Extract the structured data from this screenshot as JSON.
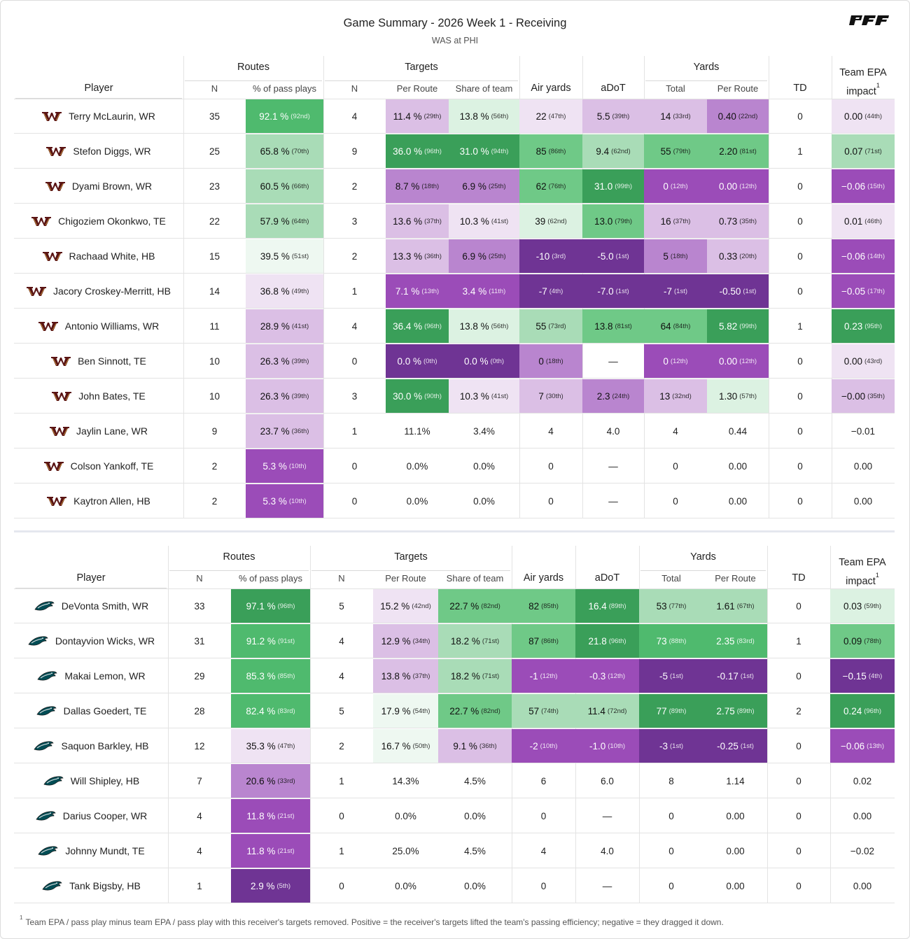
{
  "header": {
    "title": "Game Summary - 2026 Week 1 - Receiving",
    "subtitle": "WAS at PHI",
    "logo_text": "PFF"
  },
  "columns": {
    "player": "Player",
    "routes": "Routes",
    "routes_n": "N",
    "routes_pct": "% of pass plays",
    "targets": "Targets",
    "targets_n": "N",
    "per_route": "Per Route",
    "share": "Share of team",
    "air_yards": "Air yards",
    "adot": "aDoT",
    "yards": "Yards",
    "yards_total": "Total",
    "yards_per_route": "Per Route",
    "td": "TD",
    "epa_line1": "Team EPA",
    "epa_line2": "impact",
    "epa_sup": "1"
  },
  "footnote": {
    "marker": "1",
    "text": "Team EPA / pass play minus team EPA / pass play with this receiver's targets removed. Positive = the receiver's targets lifted the team's passing efficiency; negative = they dragged it down."
  },
  "colors": {
    "purple_dark": "#6f3494",
    "purple": "#9b4cb8",
    "purple_mid": "#b985cf",
    "purple_light": "#dbbfe5",
    "purple_pale": "#efe3f3",
    "green_pale": "#dcf2e2",
    "green_light": "#a9dcb7",
    "green_mid": "#6fc987",
    "green": "#4fba6e",
    "green_dark": "#3a9f59"
  },
  "tables": [
    {
      "team": "WAS",
      "logo": "commanders-w-icon",
      "rows": [
        {
          "player": "Terry McLaurin, WR",
          "routes": "35",
          "routes_pct": [
            "92.1 %",
            "92nd",
            "green"
          ],
          "targets": "4",
          "per_route": [
            "11.4 %",
            "29th",
            "plight"
          ],
          "share": [
            "13.8 %",
            "56th",
            "gpale"
          ],
          "air": [
            "22",
            "47th",
            "ppale"
          ],
          "adot": [
            "5.5",
            "39th",
            "plight"
          ],
          "ytot": [
            "14",
            "33rd",
            "plight"
          ],
          "ypr": [
            "0.40",
            "22nd",
            "pmid"
          ],
          "td": "0",
          "epa": [
            "0.00",
            "44th",
            "ppale"
          ]
        },
        {
          "player": "Stefon Diggs, WR",
          "routes": "25",
          "routes_pct": [
            "65.8 %",
            "70th",
            "glight"
          ],
          "targets": "9",
          "per_route": [
            "36.0 %",
            "96th",
            "gdark"
          ],
          "share": [
            "31.0 %",
            "94th",
            "gdark"
          ],
          "air": [
            "85",
            "86th",
            "gmid"
          ],
          "adot": [
            "9.4",
            "62nd",
            "glight"
          ],
          "ytot": [
            "55",
            "79th",
            "gmid"
          ],
          "ypr": [
            "2.20",
            "81st",
            "gmid"
          ],
          "td": "1",
          "epa": [
            "0.07",
            "71st",
            "glight"
          ]
        },
        {
          "player": "Dyami Brown, WR",
          "routes": "23",
          "routes_pct": [
            "60.5 %",
            "66th",
            "glight"
          ],
          "targets": "2",
          "per_route": [
            "8.7 %",
            "18th",
            "pmid"
          ],
          "share": [
            "6.9 %",
            "25th",
            "pmid"
          ],
          "air": [
            "62",
            "76th",
            "gmid"
          ],
          "adot": [
            "31.0",
            "99th",
            "gdark"
          ],
          "ytot": [
            "0",
            "12th",
            "purple"
          ],
          "ypr": [
            "0.00",
            "12th",
            "purple"
          ],
          "td": "0",
          "epa": [
            "−0.06",
            "15th",
            "purple"
          ]
        },
        {
          "player": "Chigoziem Okonkwo, TE",
          "routes": "22",
          "routes_pct": [
            "57.9 %",
            "64th",
            "glight"
          ],
          "targets": "3",
          "per_route": [
            "13.6 %",
            "37th",
            "plight"
          ],
          "share": [
            "10.3 %",
            "41st",
            "ppale"
          ],
          "air": [
            "39",
            "62nd",
            "gpale"
          ],
          "adot": [
            "13.0",
            "79th",
            "gmid"
          ],
          "ytot": [
            "16",
            "37th",
            "plight"
          ],
          "ypr": [
            "0.73",
            "35th",
            "plight"
          ],
          "td": "0",
          "epa": [
            "0.01",
            "46th",
            "ppale"
          ]
        },
        {
          "player": "Rachaad White, HB",
          "routes": "15",
          "routes_pct": [
            "39.5 %",
            "51st",
            "gvpale"
          ],
          "targets": "2",
          "per_route": [
            "13.3 %",
            "36th",
            "plight"
          ],
          "share": [
            "6.9 %",
            "25th",
            "pmid"
          ],
          "air": [
            "-10",
            "3rd",
            "pdark"
          ],
          "adot": [
            "-5.0",
            "1st",
            "pdark"
          ],
          "ytot": [
            "5",
            "18th",
            "pmid"
          ],
          "ypr": [
            "0.33",
            "20th",
            "plight"
          ],
          "td": "0",
          "epa": [
            "−0.06",
            "14th",
            "purple"
          ]
        },
        {
          "player": "Jacory Croskey-Merritt, HB",
          "routes": "14",
          "routes_pct": [
            "36.8 %",
            "49th",
            "ppale"
          ],
          "targets": "1",
          "per_route": [
            "7.1 %",
            "13th",
            "purple"
          ],
          "share": [
            "3.4 %",
            "11th",
            "purple"
          ],
          "air": [
            "-7",
            "4th",
            "pdark"
          ],
          "adot": [
            "-7.0",
            "1st",
            "pdark"
          ],
          "ytot": [
            "-7",
            "1st",
            "pdark"
          ],
          "ypr": [
            "-0.50",
            "1st",
            "pdark"
          ],
          "td": "0",
          "epa": [
            "−0.05",
            "17th",
            "purple"
          ]
        },
        {
          "player": "Antonio Williams, WR",
          "routes": "11",
          "routes_pct": [
            "28.9 %",
            "41st",
            "plight"
          ],
          "targets": "4",
          "per_route": [
            "36.4 %",
            "96th",
            "gdark"
          ],
          "share": [
            "13.8 %",
            "56th",
            "gpale"
          ],
          "air": [
            "55",
            "73rd",
            "glight"
          ],
          "adot": [
            "13.8",
            "81st",
            "gmid"
          ],
          "ytot": [
            "64",
            "84th",
            "gmid"
          ],
          "ypr": [
            "5.82",
            "99th",
            "gdark"
          ],
          "td": "1",
          "epa": [
            "0.23",
            "95th",
            "gdark"
          ]
        },
        {
          "player": "Ben Sinnott, TE",
          "routes": "10",
          "routes_pct": [
            "26.3 %",
            "39th",
            "plight"
          ],
          "targets": "0",
          "per_route": [
            "0.0 %",
            "0th",
            "pdark"
          ],
          "share": [
            "0.0 %",
            "0th",
            "pdark"
          ],
          "air": [
            "0",
            "18th",
            "pmid"
          ],
          "adot": [
            "—",
            "",
            ""
          ],
          "ytot": [
            "0",
            "12th",
            "purple"
          ],
          "ypr": [
            "0.00",
            "12th",
            "purple"
          ],
          "td": "0",
          "epa": [
            "0.00",
            "43rd",
            "ppale"
          ]
        },
        {
          "player": "John Bates, TE",
          "routes": "10",
          "routes_pct": [
            "26.3 %",
            "39th",
            "plight"
          ],
          "targets": "3",
          "per_route": [
            "30.0 %",
            "90th",
            "gdark"
          ],
          "share": [
            "10.3 %",
            "41st",
            "ppale"
          ],
          "air": [
            "7",
            "30th",
            "plight"
          ],
          "adot": [
            "2.3",
            "24th",
            "pmid"
          ],
          "ytot": [
            "13",
            "32nd",
            "plight"
          ],
          "ypr": [
            "1.30",
            "57th",
            "gpale"
          ],
          "td": "0",
          "epa": [
            "−0.00",
            "35th",
            "plight"
          ]
        },
        {
          "player": "Jaylin Lane, WR",
          "routes": "9",
          "routes_pct": [
            "23.7 %",
            "36th",
            "plight"
          ],
          "targets": "1",
          "per_route": [
            "11.1%",
            "",
            ""
          ],
          "share": [
            "3.4%",
            "",
            ""
          ],
          "air": [
            "4",
            "",
            ""
          ],
          "adot": [
            "4.0",
            "",
            ""
          ],
          "ytot": [
            "4",
            "",
            ""
          ],
          "ypr": [
            "0.44",
            "",
            ""
          ],
          "td": "0",
          "epa": [
            "−0.01",
            "",
            ""
          ]
        },
        {
          "player": "Colson Yankoff, TE",
          "routes": "2",
          "routes_pct": [
            "5.3 %",
            "10th",
            "purple"
          ],
          "targets": "0",
          "per_route": [
            "0.0%",
            "",
            ""
          ],
          "share": [
            "0.0%",
            "",
            ""
          ],
          "air": [
            "0",
            "",
            ""
          ],
          "adot": [
            "—",
            "",
            ""
          ],
          "ytot": [
            "0",
            "",
            ""
          ],
          "ypr": [
            "0.00",
            "",
            ""
          ],
          "td": "0",
          "epa": [
            "0.00",
            "",
            ""
          ]
        },
        {
          "player": "Kaytron Allen, HB",
          "routes": "2",
          "routes_pct": [
            "5.3 %",
            "10th",
            "purple"
          ],
          "targets": "0",
          "per_route": [
            "0.0%",
            "",
            ""
          ],
          "share": [
            "0.0%",
            "",
            ""
          ],
          "air": [
            "0",
            "",
            ""
          ],
          "adot": [
            "—",
            "",
            ""
          ],
          "ytot": [
            "0",
            "",
            ""
          ],
          "ypr": [
            "0.00",
            "",
            ""
          ],
          "td": "0",
          "epa": [
            "0.00",
            "",
            ""
          ]
        }
      ]
    },
    {
      "team": "PHI",
      "logo": "eagles-head-icon",
      "rows": [
        {
          "player": "DeVonta Smith, WR",
          "routes": "33",
          "routes_pct": [
            "97.1 %",
            "96th",
            "gdark"
          ],
          "targets": "5",
          "per_route": [
            "15.2 %",
            "42nd",
            "ppale"
          ],
          "share": [
            "22.7 %",
            "82nd",
            "gmid"
          ],
          "air": [
            "82",
            "85th",
            "gmid"
          ],
          "adot": [
            "16.4",
            "89th",
            "gdark"
          ],
          "ytot": [
            "53",
            "77th",
            "glight"
          ],
          "ypr": [
            "1.61",
            "67th",
            "glight"
          ],
          "td": "0",
          "epa": [
            "0.03",
            "59th",
            "gpale"
          ]
        },
        {
          "player": "Dontayvion Wicks, WR",
          "routes": "31",
          "routes_pct": [
            "91.2 %",
            "91st",
            "green"
          ],
          "targets": "4",
          "per_route": [
            "12.9 %",
            "34th",
            "plight"
          ],
          "share": [
            "18.2 %",
            "71st",
            "glight"
          ],
          "air": [
            "87",
            "86th",
            "gmid"
          ],
          "adot": [
            "21.8",
            "96th",
            "gdark"
          ],
          "ytot": [
            "73",
            "88th",
            "green"
          ],
          "ypr": [
            "2.35",
            "83rd",
            "green"
          ],
          "td": "1",
          "epa": [
            "0.09",
            "78th",
            "gmid"
          ]
        },
        {
          "player": "Makai Lemon, WR",
          "routes": "29",
          "routes_pct": [
            "85.3 %",
            "85th",
            "green"
          ],
          "targets": "4",
          "per_route": [
            "13.8 %",
            "37th",
            "plight"
          ],
          "share": [
            "18.2 %",
            "71st",
            "glight"
          ],
          "air": [
            "-1",
            "12th",
            "purple"
          ],
          "adot": [
            "-0.3",
            "12th",
            "purple"
          ],
          "ytot": [
            "-5",
            "1st",
            "pdark"
          ],
          "ypr": [
            "-0.17",
            "1st",
            "pdark"
          ],
          "td": "0",
          "epa": [
            "−0.15",
            "4th",
            "pdark"
          ]
        },
        {
          "player": "Dallas Goedert, TE",
          "routes": "28",
          "routes_pct": [
            "82.4 %",
            "83rd",
            "green"
          ],
          "targets": "5",
          "per_route": [
            "17.9 %",
            "54th",
            "gvpale"
          ],
          "share": [
            "22.7 %",
            "82nd",
            "gmid"
          ],
          "air": [
            "57",
            "74th",
            "glight"
          ],
          "adot": [
            "11.4",
            "72nd",
            "glight"
          ],
          "ytot": [
            "77",
            "89th",
            "gdark"
          ],
          "ypr": [
            "2.75",
            "89th",
            "gdark"
          ],
          "td": "2",
          "epa": [
            "0.24",
            "96th",
            "gdark"
          ]
        },
        {
          "player": "Saquon Barkley, HB",
          "routes": "12",
          "routes_pct": [
            "35.3 %",
            "47th",
            "ppale"
          ],
          "targets": "2",
          "per_route": [
            "16.7 %",
            "50th",
            "gvpale"
          ],
          "share": [
            "9.1 %",
            "36th",
            "plight"
          ],
          "air": [
            "-2",
            "10th",
            "purple"
          ],
          "adot": [
            "-1.0",
            "10th",
            "purple"
          ],
          "ytot": [
            "-3",
            "1st",
            "pdark"
          ],
          "ypr": [
            "-0.25",
            "1st",
            "pdark"
          ],
          "td": "0",
          "epa": [
            "−0.06",
            "13th",
            "purple"
          ]
        },
        {
          "player": "Will Shipley, HB",
          "routes": "7",
          "routes_pct": [
            "20.6 %",
            "33rd",
            "pmid"
          ],
          "targets": "1",
          "per_route": [
            "14.3%",
            "",
            ""
          ],
          "share": [
            "4.5%",
            "",
            ""
          ],
          "air": [
            "6",
            "",
            ""
          ],
          "adot": [
            "6.0",
            "",
            ""
          ],
          "ytot": [
            "8",
            "",
            ""
          ],
          "ypr": [
            "1.14",
            "",
            ""
          ],
          "td": "0",
          "epa": [
            "0.02",
            "",
            ""
          ]
        },
        {
          "player": "Darius Cooper, WR",
          "routes": "4",
          "routes_pct": [
            "11.8 %",
            "21st",
            "purple"
          ],
          "targets": "0",
          "per_route": [
            "0.0%",
            "",
            ""
          ],
          "share": [
            "0.0%",
            "",
            ""
          ],
          "air": [
            "0",
            "",
            ""
          ],
          "adot": [
            "—",
            "",
            ""
          ],
          "ytot": [
            "0",
            "",
            ""
          ],
          "ypr": [
            "0.00",
            "",
            ""
          ],
          "td": "0",
          "epa": [
            "0.00",
            "",
            ""
          ]
        },
        {
          "player": "Johnny Mundt, TE",
          "routes": "4",
          "routes_pct": [
            "11.8 %",
            "21st",
            "purple"
          ],
          "targets": "1",
          "per_route": [
            "25.0%",
            "",
            ""
          ],
          "share": [
            "4.5%",
            "",
            ""
          ],
          "air": [
            "4",
            "",
            ""
          ],
          "adot": [
            "4.0",
            "",
            ""
          ],
          "ytot": [
            "0",
            "",
            ""
          ],
          "ypr": [
            "0.00",
            "",
            ""
          ],
          "td": "0",
          "epa": [
            "−0.02",
            "",
            ""
          ]
        },
        {
          "player": "Tank Bigsby, HB",
          "routes": "1",
          "routes_pct": [
            "2.9 %",
            "5th",
            "pdark"
          ],
          "targets": "0",
          "per_route": [
            "0.0%",
            "",
            ""
          ],
          "share": [
            "0.0%",
            "",
            ""
          ],
          "air": [
            "0",
            "",
            ""
          ],
          "adot": [
            "—",
            "",
            ""
          ],
          "ytot": [
            "0",
            "",
            ""
          ],
          "ypr": [
            "0.00",
            "",
            ""
          ],
          "td": "0",
          "epa": [
            "0.00",
            "",
            ""
          ]
        }
      ]
    }
  ]
}
